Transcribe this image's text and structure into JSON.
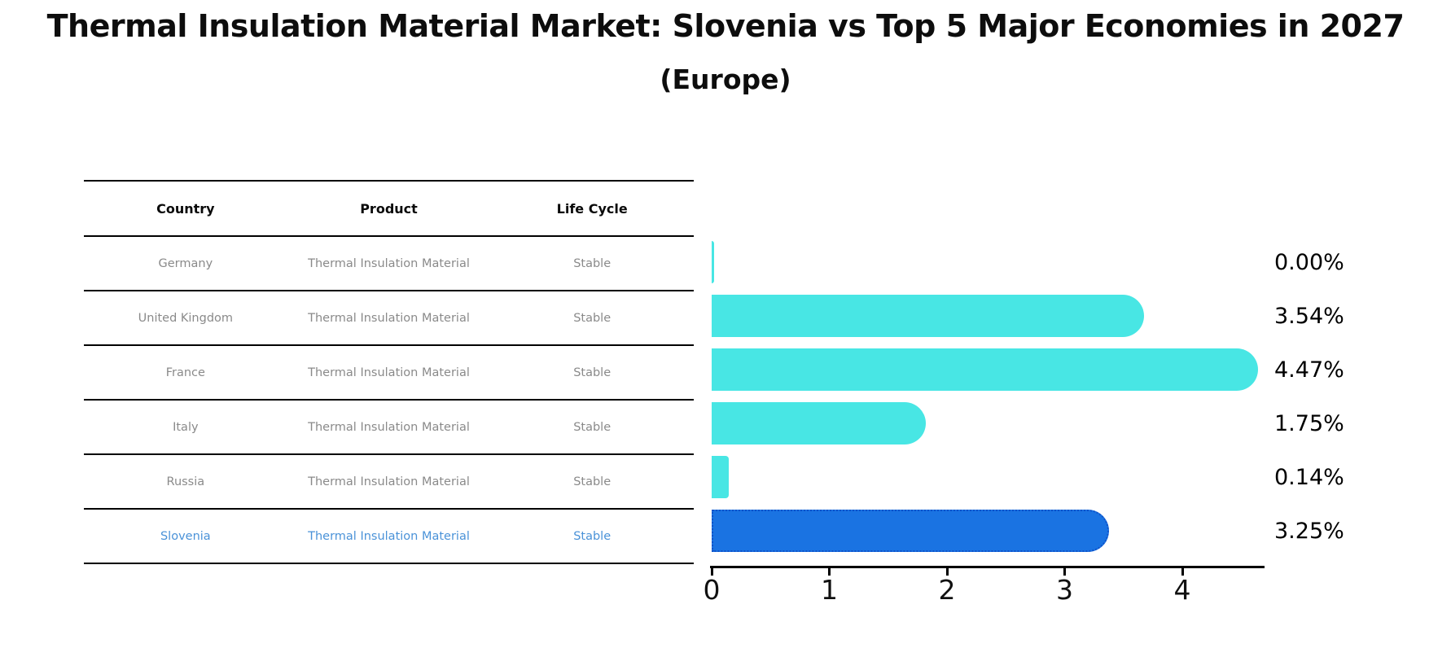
{
  "title": "Thermal Insulation Material Market: Slovenia vs Top 5 Major Economies in 2027",
  "subtitle": "(Europe)",
  "table": {
    "headers": [
      "Country",
      "Product",
      "Life Cycle"
    ],
    "rows": [
      {
        "country": "Germany",
        "product": "Thermal Insulation Material",
        "life_cycle": "Stable",
        "highlight": false
      },
      {
        "country": "United Kingdom",
        "product": "Thermal Insulation Material",
        "life_cycle": "Stable",
        "highlight": false
      },
      {
        "country": "France",
        "product": "Thermal Insulation Material",
        "life_cycle": "Stable",
        "highlight": false
      },
      {
        "country": "Italy",
        "product": "Thermal Insulation Material",
        "life_cycle": "Stable",
        "highlight": false
      },
      {
        "country": "Russia",
        "product": "Thermal Insulation Material",
        "life_cycle": "Stable",
        "highlight": false
      },
      {
        "country": "Slovenia",
        "product": "Thermal Insulation Material",
        "life_cycle": "Stable",
        "highlight": true
      }
    ]
  },
  "chart_data": {
    "type": "bar",
    "orientation": "horizontal",
    "title": "Thermal Insulation Material Market: Slovenia vs Top 5 Major Economies in 2027 (Europe)",
    "categories": [
      "Germany",
      "United Kingdom",
      "France",
      "Italy",
      "Russia",
      "Slovenia"
    ],
    "values": [
      0.0,
      3.54,
      4.47,
      1.75,
      0.14,
      3.25
    ],
    "value_labels": [
      "0.00%",
      "3.54%",
      "4.47%",
      "1.75%",
      "0.14%",
      "3.25%"
    ],
    "highlight_index": 5,
    "x_ticks": [
      0,
      1,
      2,
      3,
      4
    ],
    "xlim": [
      0,
      4.7
    ],
    "grid": false,
    "legend": "none",
    "bar_color": "#48e6e4",
    "highlight_bar_color": "#1a73e2",
    "highlight_border_color": "#0f52c9",
    "highlight_text_color": "#4a92d8",
    "row_text_color": "#8a8a8a"
  }
}
